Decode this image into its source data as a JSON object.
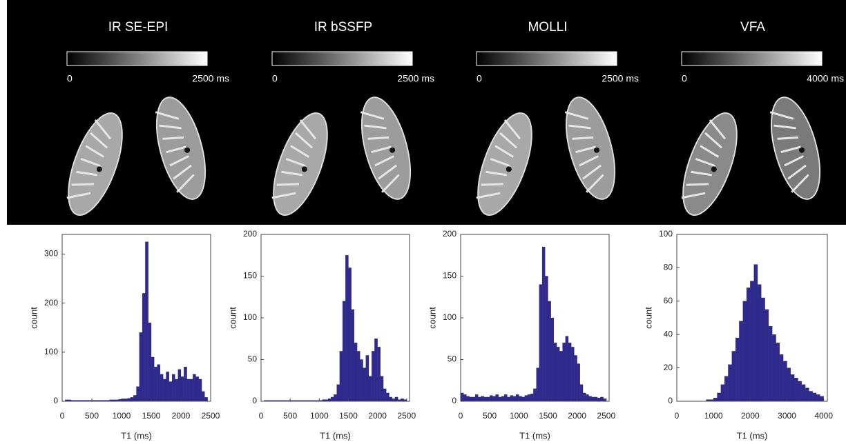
{
  "maps": [
    {
      "title": "IR SE-EPI",
      "colorbar_ticks": [
        0,
        {
          "value": 2500,
          "label": "2500 ms"
        }
      ]
    },
    {
      "title": "IR bSSFP",
      "colorbar_ticks": [
        0,
        {
          "value": 2500,
          "label": "2500 ms"
        }
      ]
    },
    {
      "title": "MOLLI",
      "colorbar_ticks": [
        0,
        {
          "value": 2500,
          "label": "2500 ms"
        }
      ]
    },
    {
      "title": "VFA",
      "colorbar_ticks": [
        0,
        {
          "value": 4000,
          "label": "4000 ms"
        }
      ]
    }
  ],
  "chart_data": [
    {
      "type": "histogram",
      "xlabel": "T1 (ms)",
      "ylabel": "count",
      "color": "#2f2a8c",
      "xlim": [
        0,
        2500
      ],
      "ylim": [
        0,
        340
      ],
      "xticks": [
        0,
        500,
        1000,
        1500,
        2000,
        2500
      ],
      "yticks": [
        0,
        100,
        200,
        300
      ],
      "bins": [
        0,
        50,
        100,
        150,
        200,
        250,
        300,
        350,
        400,
        450,
        500,
        550,
        600,
        650,
        700,
        750,
        800,
        850,
        900,
        950,
        1000,
        1050,
        1100,
        1150,
        1200,
        1250,
        1300,
        1350,
        1400,
        1450,
        1500,
        1550,
        1600,
        1650,
        1700,
        1750,
        1800,
        1850,
        1900,
        1950,
        2000,
        2050,
        2100,
        2150,
        2200,
        2250,
        2300,
        2350,
        2400,
        2450,
        2500
      ],
      "counts": [
        0,
        3,
        3,
        2,
        2,
        2,
        2,
        2,
        2,
        2,
        2,
        2,
        2,
        2,
        2,
        2,
        3,
        3,
        3,
        4,
        5,
        5,
        6,
        8,
        12,
        30,
        140,
        220,
        325,
        160,
        90,
        70,
        75,
        55,
        45,
        60,
        40,
        55,
        45,
        65,
        50,
        70,
        45,
        45,
        55,
        50,
        45,
        20,
        8,
        0
      ]
    },
    {
      "type": "histogram",
      "xlabel": "T1 (ms)",
      "ylabel": "count",
      "color": "#2f2a8c",
      "xlim": [
        0,
        2550
      ],
      "ylim": [
        0,
        200
      ],
      "xticks": [
        0,
        500,
        1000,
        1500,
        2000,
        2500
      ],
      "yticks": [
        0,
        50,
        100,
        150,
        200
      ],
      "bins": [
        0,
        50,
        100,
        150,
        200,
        250,
        300,
        350,
        400,
        450,
        500,
        550,
        600,
        650,
        700,
        750,
        800,
        850,
        900,
        950,
        1000,
        1050,
        1100,
        1150,
        1200,
        1250,
        1300,
        1350,
        1400,
        1450,
        1500,
        1550,
        1600,
        1650,
        1700,
        1750,
        1800,
        1850,
        1900,
        1950,
        2000,
        2050,
        2100,
        2150,
        2200,
        2250,
        2300,
        2350,
        2400,
        2450,
        2500
      ],
      "counts": [
        0,
        1,
        1,
        1,
        1,
        1,
        1,
        1,
        1,
        1,
        1,
        1,
        1,
        1,
        1,
        1,
        1,
        1,
        1,
        1,
        1,
        2,
        2,
        3,
        5,
        8,
        20,
        60,
        120,
        175,
        160,
        110,
        70,
        60,
        50,
        40,
        55,
        30,
        60,
        75,
        65,
        30,
        15,
        10,
        5,
        3,
        5,
        2,
        3,
        2
      ]
    },
    {
      "type": "histogram",
      "xlabel": "T1 (ms)",
      "ylabel": "count",
      "color": "#2f2a8c",
      "xlim": [
        0,
        2550
      ],
      "ylim": [
        0,
        200
      ],
      "xticks": [
        0,
        500,
        1000,
        1500,
        2000,
        2500
      ],
      "yticks": [
        0,
        50,
        100,
        150,
        200
      ],
      "bins": [
        0,
        50,
        100,
        150,
        200,
        250,
        300,
        350,
        400,
        450,
        500,
        550,
        600,
        650,
        700,
        750,
        800,
        850,
        900,
        950,
        1000,
        1050,
        1100,
        1150,
        1200,
        1250,
        1300,
        1350,
        1400,
        1450,
        1500,
        1550,
        1600,
        1650,
        1700,
        1750,
        1800,
        1850,
        1900,
        1950,
        2000,
        2050,
        2100,
        2150,
        2200,
        2250,
        2300,
        2350,
        2400,
        2450,
        2500
      ],
      "counts": [
        10,
        8,
        6,
        5,
        5,
        8,
        5,
        6,
        5,
        5,
        7,
        6,
        8,
        5,
        6,
        8,
        5,
        7,
        6,
        8,
        6,
        5,
        7,
        8,
        9,
        15,
        40,
        140,
        185,
        150,
        120,
        100,
        70,
        65,
        60,
        70,
        78,
        70,
        65,
        55,
        45,
        20,
        10,
        8,
        6,
        5,
        5,
        4,
        5,
        3
      ]
    },
    {
      "type": "histogram",
      "xlabel": "T1 (ms)",
      "ylabel": "count",
      "color": "#2f2a8c",
      "xlim": [
        0,
        4100
      ],
      "ylim": [
        0,
        100
      ],
      "xticks": [
        0,
        1000,
        2000,
        3000,
        4000
      ],
      "yticks": [
        0,
        20,
        40,
        60,
        80,
        100
      ],
      "bins": [
        0,
        100,
        200,
        300,
        400,
        500,
        600,
        700,
        800,
        900,
        1000,
        1100,
        1200,
        1300,
        1400,
        1500,
        1600,
        1700,
        1800,
        1900,
        2000,
        2100,
        2200,
        2300,
        2400,
        2500,
        2600,
        2700,
        2800,
        2900,
        3000,
        3100,
        3200,
        3300,
        3400,
        3500,
        3600,
        3700,
        3800,
        3900,
        4000
      ],
      "counts": [
        0,
        0,
        0,
        0,
        0,
        0,
        0,
        0,
        1,
        1,
        2,
        5,
        10,
        15,
        22,
        30,
        38,
        48,
        60,
        68,
        72,
        82,
        70,
        62,
        55,
        45,
        40,
        35,
        28,
        24,
        20,
        16,
        14,
        12,
        10,
        8,
        6,
        5,
        4,
        3
      ]
    }
  ]
}
